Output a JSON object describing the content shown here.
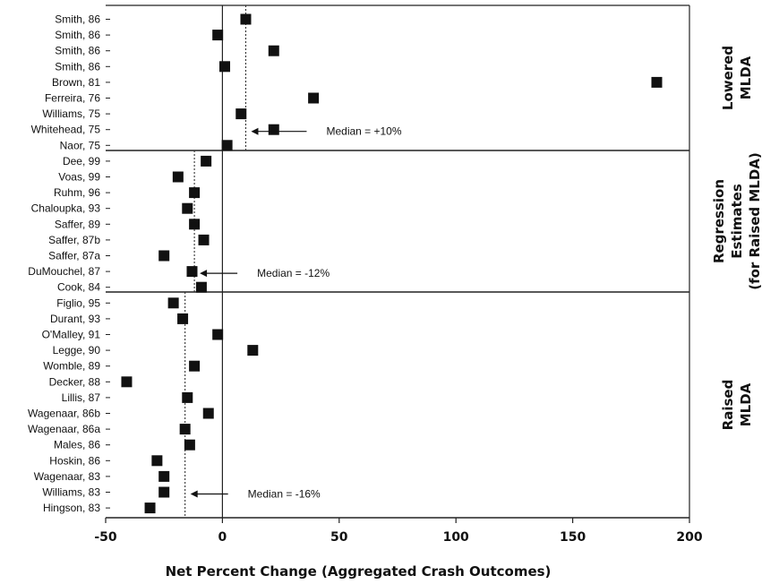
{
  "chart_data": {
    "type": "scatter",
    "xlabel": "Net Percent Change (Aggregated Crash Outcomes)",
    "xlim": [
      -50,
      200
    ],
    "xticks": [
      "-50",
      "0",
      "50",
      "100",
      "150",
      "200"
    ],
    "xtick_values": [
      -50,
      0,
      50,
      100,
      150,
      200
    ],
    "panels": [
      {
        "label_lines": [
          "Lowered",
          "MLDA"
        ],
        "median": 10,
        "median_label": "Median = +10%",
        "studies": [
          {
            "name": "Smith, 86",
            "value": 10
          },
          {
            "name": "Smith, 86",
            "value": -2
          },
          {
            "name": "Smith, 86",
            "value": 22
          },
          {
            "name": "Smith, 86",
            "value": 1
          },
          {
            "name": "Brown, 81",
            "value": 186
          },
          {
            "name": "Ferreira, 76",
            "value": 39
          },
          {
            "name": "Williams, 75",
            "value": 8
          },
          {
            "name": "Whitehead, 75",
            "value": 22
          },
          {
            "name": "Naor, 75",
            "value": 2
          }
        ]
      },
      {
        "label_lines": [
          "Regression",
          "Estimates",
          "(for Raised MLDA)"
        ],
        "median": -12,
        "median_label": "Median = -12%",
        "studies": [
          {
            "name": "Dee, 99",
            "value": -7
          },
          {
            "name": "Voas, 99",
            "value": -19
          },
          {
            "name": "Ruhm, 96",
            "value": -12
          },
          {
            "name": "Chaloupka, 93",
            "value": -15
          },
          {
            "name": "Saffer, 89",
            "value": -12
          },
          {
            "name": "Saffer, 87b",
            "value": -8
          },
          {
            "name": "Saffer, 87a",
            "value": -25
          },
          {
            "name": "DuMouchel, 87",
            "value": -13
          },
          {
            "name": "Cook, 84",
            "value": -9
          }
        ]
      },
      {
        "label_lines": [
          "Raised",
          "MLDA"
        ],
        "median": -16,
        "median_label": "Median = -16%",
        "studies": [
          {
            "name": "Figlio, 95",
            "value": -21
          },
          {
            "name": "Durant, 93",
            "value": -17
          },
          {
            "name": "O'Malley, 91",
            "value": -2
          },
          {
            "name": "Legge, 90",
            "value": 13
          },
          {
            "name": "Womble, 89",
            "value": -12
          },
          {
            "name": "Decker, 88",
            "value": -41
          },
          {
            "name": "Lillis, 87",
            "value": -15
          },
          {
            "name": "Wagenaar, 86b",
            "value": -6
          },
          {
            "name": "Wagenaar, 86a",
            "value": -16
          },
          {
            "name": "Males, 86",
            "value": -14
          },
          {
            "name": "Hoskin, 86",
            "value": -28
          },
          {
            "name": "Wagenaar, 83",
            "value": -25
          },
          {
            "name": "Williams, 83",
            "value": -25
          },
          {
            "name": "Hingson, 83",
            "value": -31
          }
        ]
      }
    ]
  }
}
